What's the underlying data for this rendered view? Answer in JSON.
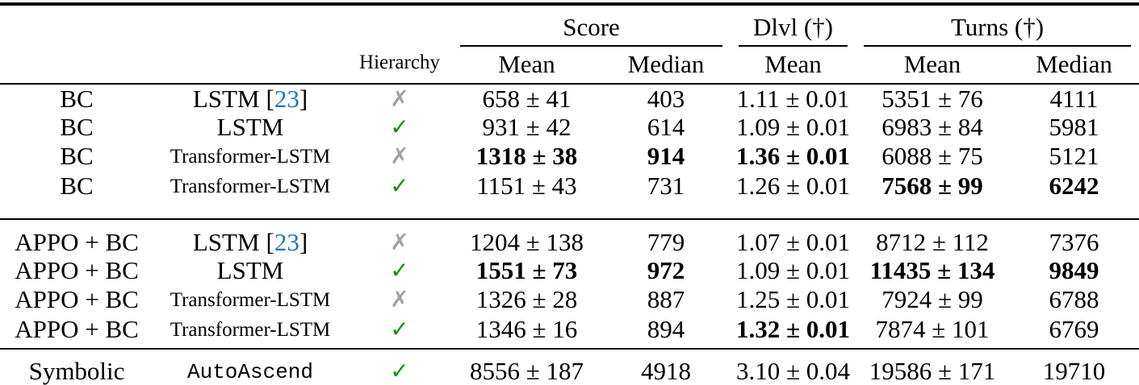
{
  "colors": {
    "check_green": "#119111",
    "cross_gray": "#a3a3a3",
    "cite_blue": "#1f77b4",
    "rule_black": "#000000"
  },
  "icons": {
    "check": "✓",
    "cross": "✗"
  },
  "cite": {
    "open": "[",
    "close": "]"
  },
  "header": {
    "groups": {
      "score": "Score",
      "dlvl": "Dlvl (†)",
      "turns": "Turns (†)"
    },
    "hierarchy": "Hierarchy",
    "sub": {
      "mean": "Mean",
      "median": "Median"
    }
  },
  "rows": [
    {
      "method": "BC",
      "arch": "LSTM",
      "cite_num": "23",
      "hierarchy": "✗",
      "score_mean": "658 ± 41",
      "score_median": "403",
      "dlvl_mean": "1.11 ± 0.01",
      "turns_mean": "5351 ± 76",
      "turns_median": "4111"
    },
    {
      "method": "BC",
      "arch": "LSTM",
      "hierarchy": "✓",
      "score_mean": "931 ± 42",
      "score_median": "614",
      "dlvl_mean": "1.09 ± 0.01",
      "turns_mean": "6983 ± 84",
      "turns_median": "5981"
    },
    {
      "method": "BC",
      "arch": "Transformer-LSTM",
      "hierarchy": "✗",
      "score_mean": "1318 ± 38",
      "score_median": "914",
      "dlvl_mean": "1.36 ± 0.01",
      "turns_mean": "6088 ± 75",
      "turns_median": "5121"
    },
    {
      "method": "BC",
      "arch": "Transformer-LSTM",
      "hierarchy": "✓",
      "score_mean": "1151 ± 43",
      "score_median": "731",
      "dlvl_mean": "1.26 ± 0.01",
      "turns_mean": "7568 ± 99",
      "turns_median": "6242"
    },
    {
      "method": "APPO + BC",
      "arch": "LSTM",
      "cite_num": "23",
      "hierarchy": "✗",
      "score_mean": "1204 ± 138",
      "score_median": "779",
      "dlvl_mean": "1.07 ± 0.01",
      "turns_mean": "8712 ± 112",
      "turns_median": "7376"
    },
    {
      "method": "APPO + BC",
      "arch": "LSTM",
      "hierarchy": "✓",
      "score_mean": "1551 ± 73",
      "score_median": "972",
      "dlvl_mean": "1.09 ± 0.01",
      "turns_mean": "11435 ± 134",
      "turns_median": "9849"
    },
    {
      "method": "APPO + BC",
      "arch": "Transformer-LSTM",
      "hierarchy": "✗",
      "score_mean": "1326 ± 28",
      "score_median": "887",
      "dlvl_mean": "1.25 ± 0.01",
      "turns_mean": "7924 ± 99",
      "turns_median": "6788"
    },
    {
      "method": "APPO + BC",
      "arch": "Transformer-LSTM",
      "hierarchy": "✓",
      "score_mean": "1346 ± 16",
      "score_median": "894",
      "dlvl_mean": "1.32 ± 0.01",
      "turns_mean": "7874 ± 101",
      "turns_median": "6769"
    },
    {
      "method": "Symbolic",
      "arch": "AutoAscend",
      "hierarchy": "✓",
      "score_mean": "8556 ± 187",
      "score_median": "4918",
      "dlvl_mean": "3.10 ± 0.04",
      "turns_mean": "19586 ± 171",
      "turns_median": "19710"
    }
  ]
}
